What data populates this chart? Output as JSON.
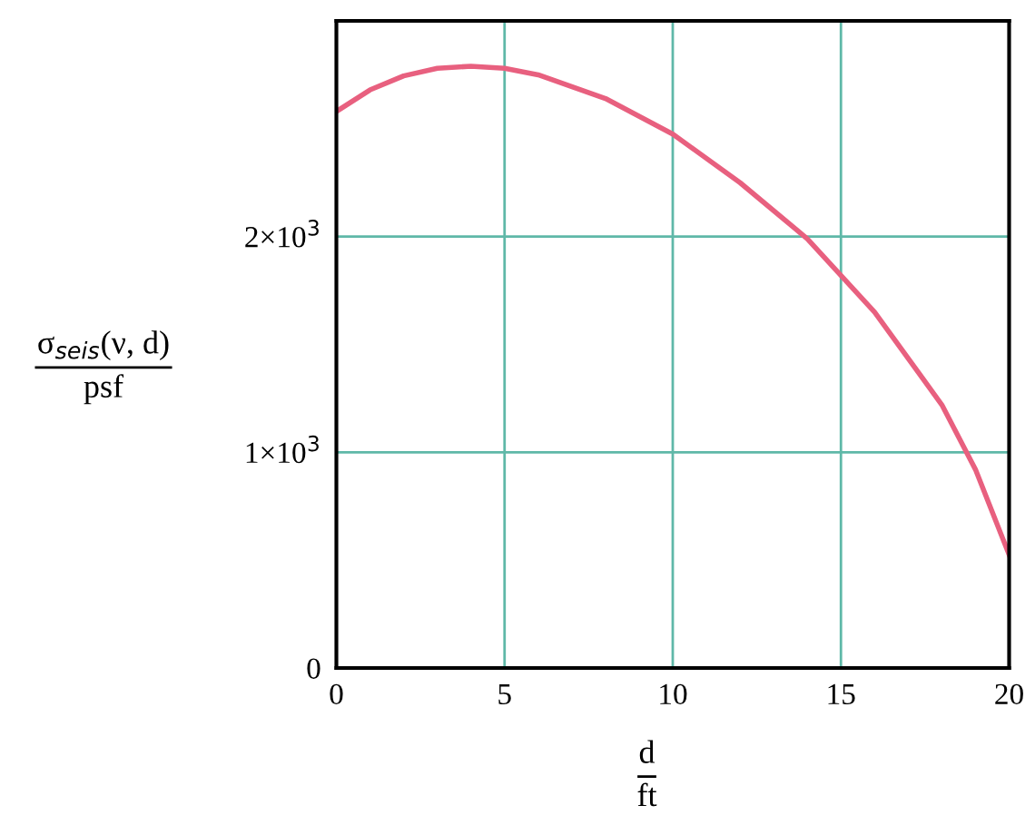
{
  "chart_data": {
    "type": "line",
    "xlabel": "d\nft",
    "ylabel": "σ$_{seis}$(ν, d)\npsf",
    "x": [
      0,
      1,
      2,
      3,
      4,
      5,
      6,
      8,
      10,
      12,
      14,
      16,
      18,
      19,
      20
    ],
    "series": [
      {
        "color": "#e8607f",
        "values": [
          2580,
          2680,
          2745,
          2780,
          2790,
          2780,
          2750,
          2640,
          2475,
          2250,
          1990,
          1650,
          1220,
          920,
          525
        ]
      }
    ],
    "xlim": [
      0,
      20
    ],
    "ylim": [
      0,
      3000
    ],
    "xticks": [
      0,
      5,
      10,
      15,
      20
    ],
    "yticks": [
      0,
      {
        "value": 1000,
        "label": "1×10$^{3}$"
      },
      {
        "value": 2000,
        "label": "2×10$^{3}$"
      }
    ],
    "grid": true,
    "line_style": "solid",
    "marker": "none"
  }
}
